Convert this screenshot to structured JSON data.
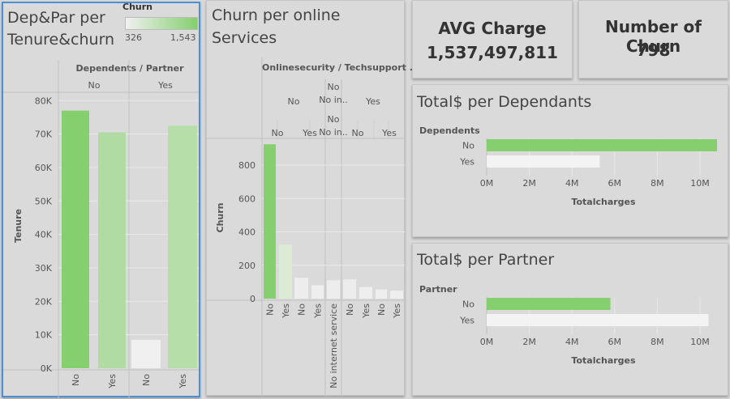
{
  "colors": {
    "churn_low": "#f0f0f0",
    "churn_high": "#85cf6f",
    "bar_gray": "#f3f3f3"
  },
  "panels": {
    "tenure": {
      "title_line1": "Dep&Par per",
      "title_line2": "Tenure&churn",
      "legend_title": "Churn",
      "legend_min": "326",
      "legend_max": "1,543"
    },
    "services": {
      "title_line1": "Churn per online",
      "title_line2": "Services"
    },
    "avg_charge": {
      "label": "AVG Charge",
      "value": "1,537,497,811"
    },
    "num_churn": {
      "label": "Number of Churn",
      "value": "798"
    },
    "dependants": {
      "title": "Total$ per Dependants"
    },
    "partner": {
      "title": "Total$ per Partner"
    }
  },
  "chart_data": [
    {
      "type": "bar",
      "header": "Dependents / Partner",
      "groups": [
        "No",
        "Yes"
      ],
      "categories": [
        [
          "No",
          "Yes"
        ],
        [
          "No",
          "Yes"
        ]
      ],
      "values": [
        [
          77000,
          70500
        ],
        [
          8500,
          72500
        ]
      ],
      "churn": [
        [
          1543,
          1050
        ],
        [
          326,
          1000
        ]
      ],
      "ylabel": "Tenure",
      "yticks": [
        "0K",
        "10K",
        "20K",
        "30K",
        "40K",
        "50K",
        "60K",
        "70K",
        "80K"
      ],
      "ylim": [
        0,
        82000
      ]
    },
    {
      "type": "bar",
      "header": "Onlinesecurity / Techsupport ..",
      "groups": [
        "No",
        "No in..",
        "Yes"
      ],
      "group_subheaders": [
        "No",
        "No in..",
        "No",
        "Yes"
      ],
      "subheaders": [
        "No",
        "Yes",
        "No in..",
        "No",
        "Yes"
      ],
      "bar_labels": [
        "No",
        "Yes",
        "No",
        "Yes",
        "No internet service",
        "No",
        "Yes",
        "No",
        "Yes"
      ],
      "values": [
        925,
        325,
        125,
        80,
        110,
        115,
        70,
        55,
        48
      ],
      "colors": [
        "#85cf6f",
        "#dcebd4",
        "#ededed",
        "#eeeeee",
        "#ededed",
        "#ececec",
        "#eeeeee",
        "#eeeeee",
        "#eeeeee"
      ],
      "ylabel": "Churn",
      "yticks": [
        "0",
        "200",
        "400",
        "600",
        "800"
      ],
      "ylim": [
        0,
        960
      ]
    },
    {
      "type": "bar",
      "orientation": "horizontal",
      "category_label": "Dependents",
      "categories": [
        "No",
        "Yes"
      ],
      "values": [
        10800000,
        5300000
      ],
      "xlabel": "Totalcharges",
      "xticks": [
        "0M",
        "2M",
        "4M",
        "6M",
        "8M",
        "10M"
      ],
      "xlim": [
        0,
        11000000
      ]
    },
    {
      "type": "bar",
      "orientation": "horizontal",
      "category_label": "Partner",
      "categories": [
        "No",
        "Yes"
      ],
      "values": [
        5800000,
        10400000
      ],
      "xlabel": "Totalcharges",
      "xticks": [
        "0M",
        "2M",
        "4M",
        "6M",
        "8M",
        "10M"
      ],
      "xlim": [
        0,
        11000000
      ]
    }
  ]
}
